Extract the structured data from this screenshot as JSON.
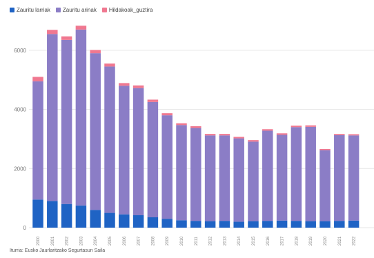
{
  "chart_data": {
    "type": "bar",
    "stacked": true,
    "title": "",
    "legend_position": "top-left",
    "legend": [
      {
        "name": "Zauritu larriak",
        "color": "#1f63c4"
      },
      {
        "name": "Zauritu arinak",
        "color": "#8b7dc6"
      },
      {
        "name": "Hildakoak_guztira",
        "color": "#f07890"
      }
    ],
    "categories": [
      "2000",
      "2001",
      "2002",
      "2003",
      "2004",
      "2005",
      "2006",
      "2007",
      "2008",
      "2009",
      "2010",
      "2011",
      "2012",
      "2013",
      "2014",
      "2015",
      "2016",
      "2017",
      "2018",
      "2019",
      "2020",
      "2021",
      "2022"
    ],
    "series": [
      {
        "name": "Zauritu larriak",
        "values": [
          950,
          900,
          800,
          750,
          600,
          500,
          450,
          420,
          350,
          300,
          250,
          230,
          220,
          230,
          200,
          220,
          230,
          240,
          230,
          220,
          220,
          230,
          240
        ]
      },
      {
        "name": "Zauritu arinak",
        "values": [
          4000,
          5650,
          5550,
          5950,
          5300,
          4950,
          4350,
          4300,
          3900,
          3500,
          3220,
          3140,
          2900,
          2890,
          2820,
          2690,
          3050,
          2900,
          3170,
          3190,
          2400,
          2900,
          2880
        ]
      },
      {
        "name": "Hildakoak_guztira",
        "values": [
          150,
          140,
          120,
          130,
          110,
          100,
          90,
          90,
          80,
          70,
          60,
          60,
          50,
          50,
          50,
          50,
          50,
          50,
          50,
          50,
          40,
          40,
          40
        ]
      }
    ],
    "ylim": [
      0,
      7000
    ],
    "yticks": [
      0,
      2000,
      4000,
      6000
    ],
    "grid": true,
    "colors": {
      "series1": "#1f63c4",
      "series2": "#8b7dc6",
      "series3": "#f07890",
      "grid": "#e6e6e6"
    }
  },
  "source": "Iturria: Eusko Jaurlaritzako Segurtasun Saila"
}
